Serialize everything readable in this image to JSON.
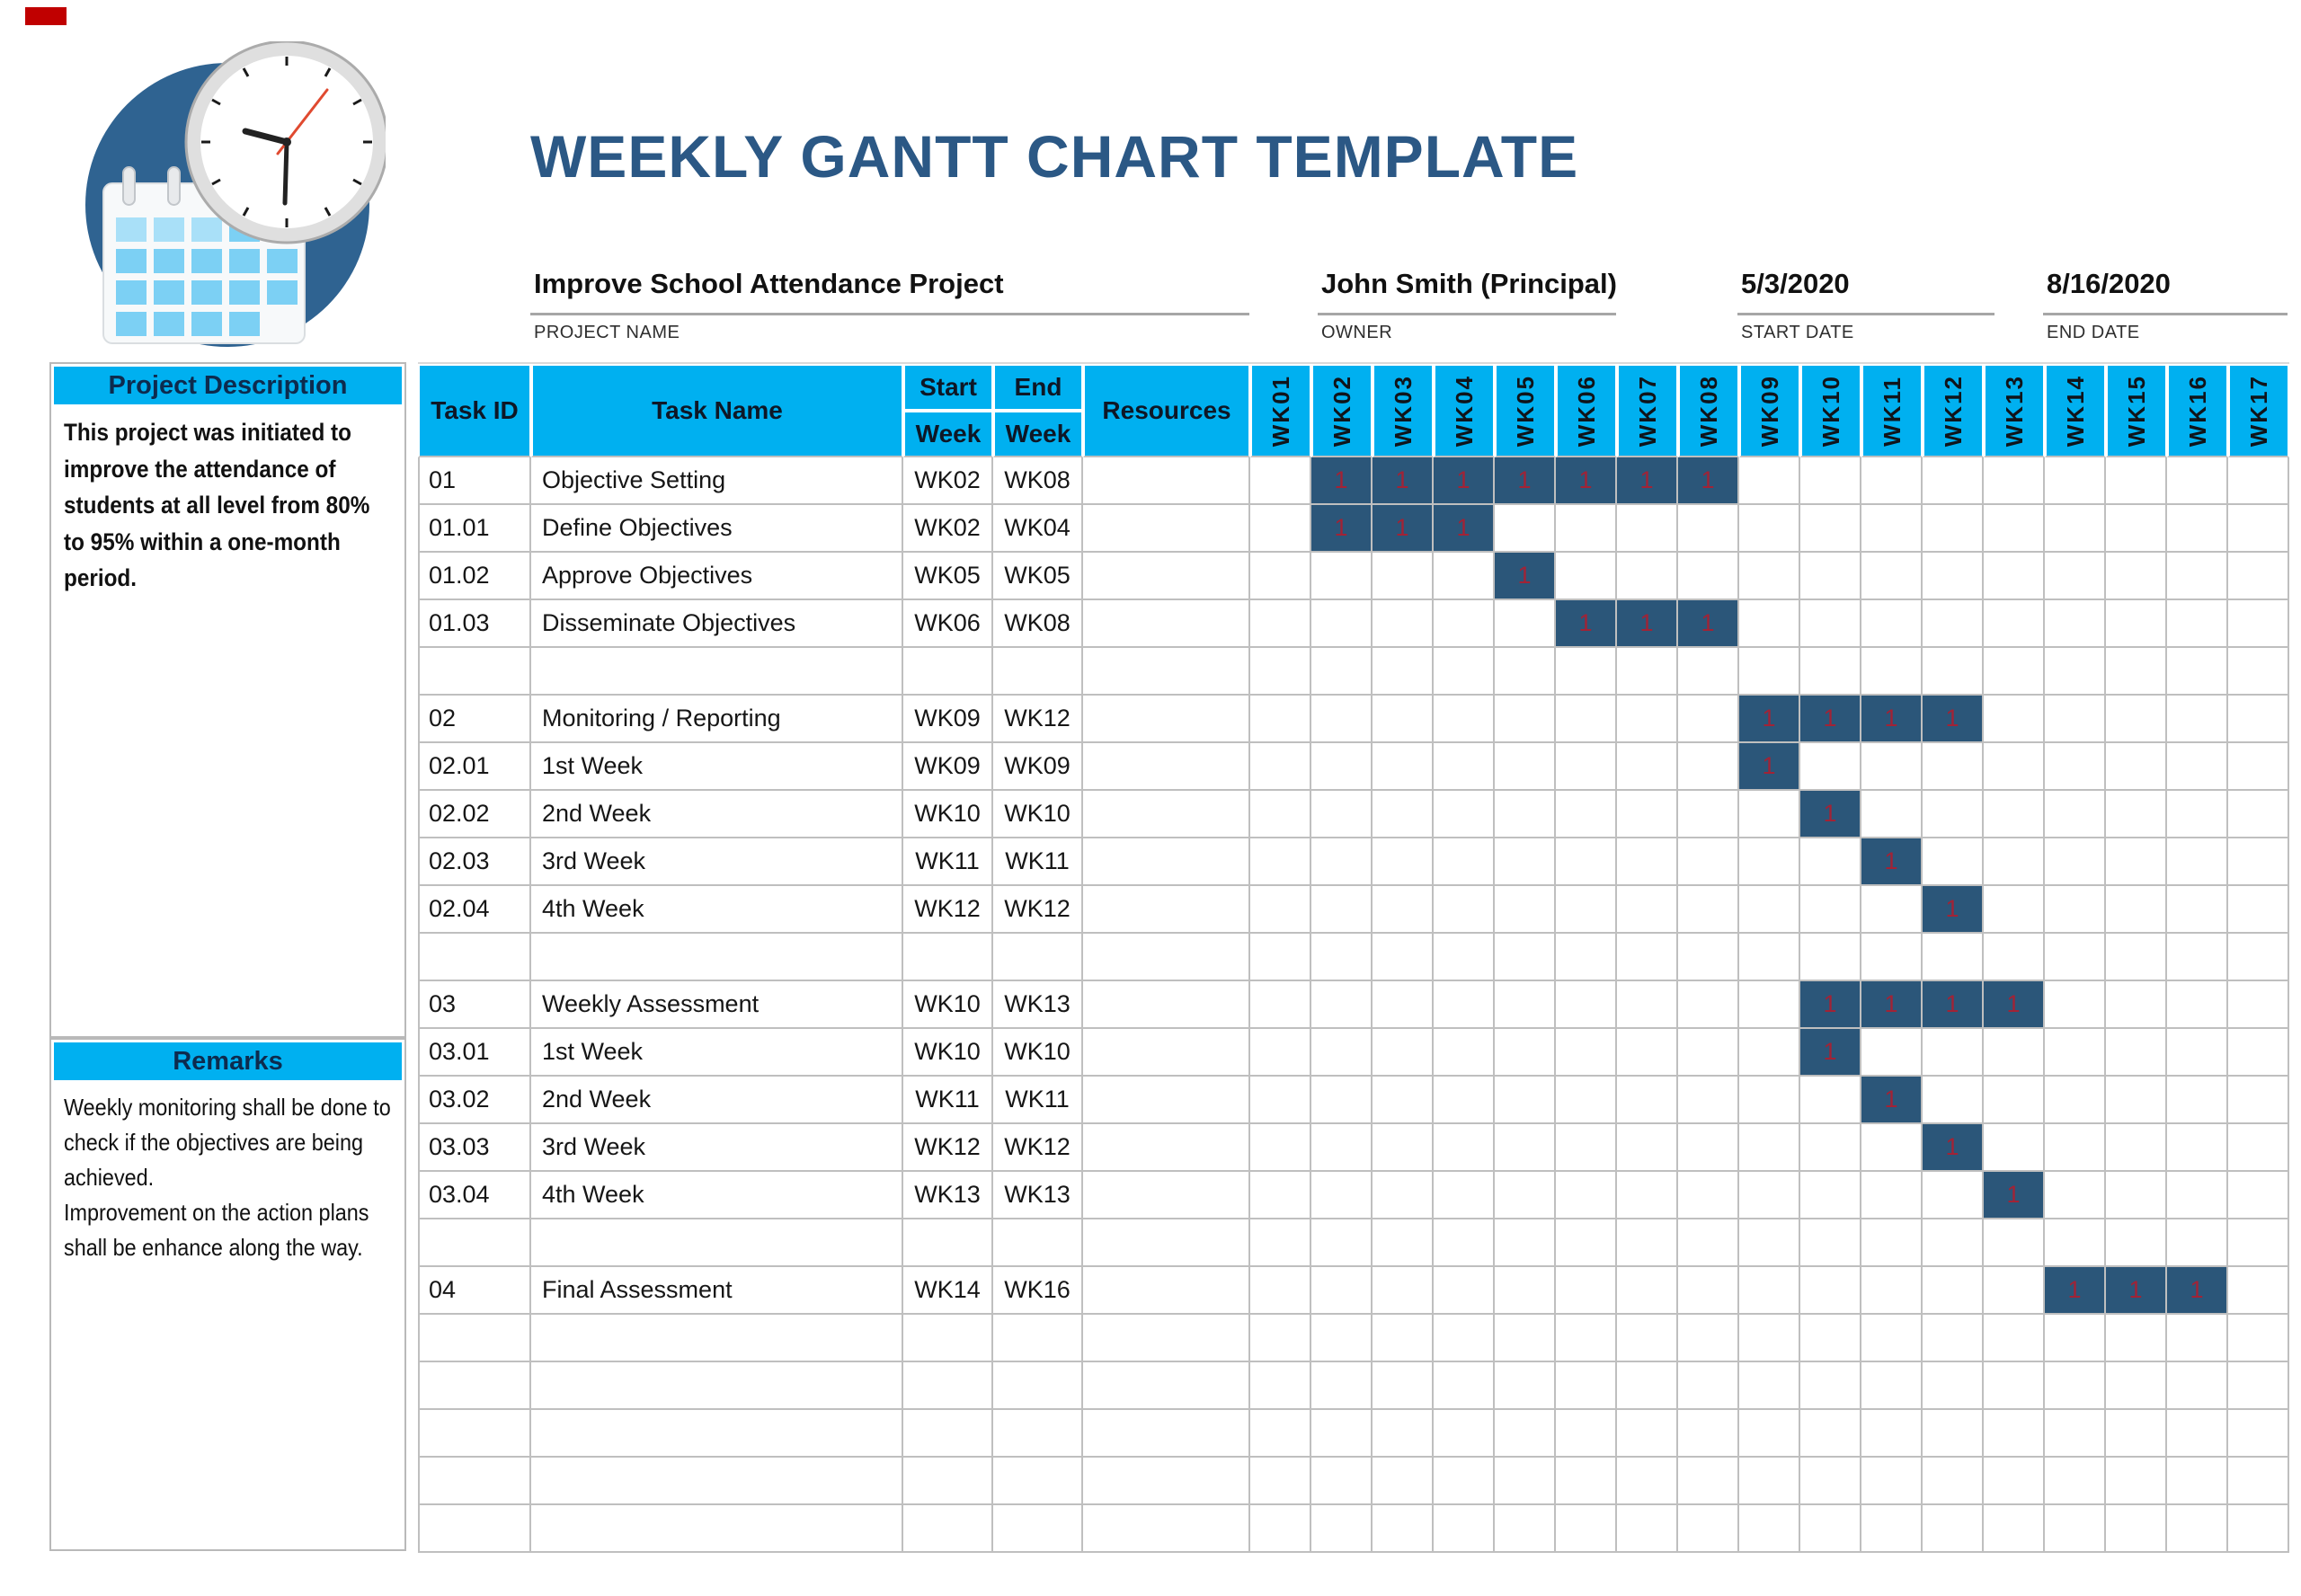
{
  "title": "WEEKLY GANTT CHART TEMPLATE",
  "colors": {
    "header_cyan": "#00B0F0",
    "bar_navy": "#2B5679",
    "bar_value_red": "#A12336",
    "title_navy": "#2B5885",
    "grid_gray": "#BFBFBF",
    "logo_circle_blue": "#2F6391",
    "marker_red": "#C00000"
  },
  "info": {
    "project_name": {
      "value": "Improve School Attendance Project",
      "label": "PROJECT NAME"
    },
    "owner": {
      "value": "John Smith (Principal)",
      "label": "OWNER"
    },
    "start_date": {
      "value": "5/3/2020",
      "label": "START DATE"
    },
    "end_date": {
      "value": "8/16/2020",
      "label": "END DATE"
    }
  },
  "sidebar": {
    "project_description": {
      "header": "Project Description",
      "body": "This project was initiated to improve the attendance of students at all level from 80% to 95% within a one-month period."
    },
    "remarks": {
      "header": "Remarks",
      "body_lines": [
        "Weekly monitoring shall be done to check if the objectives are being achieved.",
        "Improvement on the action plans shall be enhance along the way."
      ]
    }
  },
  "table_headers": {
    "task_id": "Task ID",
    "task_name": "Task Name",
    "start_line1": "Start",
    "start_line2": "Week",
    "end_line1": "End",
    "end_line2": "Week",
    "resources": "Resources"
  },
  "chart_data": {
    "type": "table",
    "subtype": "weekly-gantt",
    "title": "WEEKLY GANTT CHART TEMPLATE",
    "week_columns": [
      "WK01",
      "WK02",
      "WK03",
      "WK04",
      "WK05",
      "WK06",
      "WK07",
      "WK08",
      "WK09",
      "WK10",
      "WK11",
      "WK12",
      "WK13",
      "WK14",
      "WK15",
      "WK16",
      "WK17"
    ],
    "bar_cell_value": "1",
    "rows": [
      {
        "task_id": "01",
        "task_name": "Objective Setting",
        "start_week": "WK02",
        "end_week": "WK08",
        "resources": "",
        "bar": [
          2,
          8
        ]
      },
      {
        "task_id": "01.01",
        "task_name": "Define Objectives",
        "start_week": "WK02",
        "end_week": "WK04",
        "resources": "",
        "bar": [
          2,
          4
        ]
      },
      {
        "task_id": "01.02",
        "task_name": "Approve Objectives",
        "start_week": "WK05",
        "end_week": "WK05",
        "resources": "",
        "bar": [
          5,
          5
        ]
      },
      {
        "task_id": "01.03",
        "task_name": "Disseminate Objectives",
        "start_week": "WK06",
        "end_week": "WK08",
        "resources": "",
        "bar": [
          6,
          8
        ]
      },
      {
        "task_id": "",
        "task_name": "",
        "start_week": "",
        "end_week": "",
        "resources": "",
        "bar": null
      },
      {
        "task_id": "02",
        "task_name": "Monitoring / Reporting",
        "start_week": "WK09",
        "end_week": "WK12",
        "resources": "",
        "bar": [
          9,
          12
        ]
      },
      {
        "task_id": "02.01",
        "task_name": "1st Week",
        "start_week": "WK09",
        "end_week": "WK09",
        "resources": "",
        "bar": [
          9,
          9
        ]
      },
      {
        "task_id": "02.02",
        "task_name": "2nd Week",
        "start_week": "WK10",
        "end_week": "WK10",
        "resources": "",
        "bar": [
          10,
          10
        ]
      },
      {
        "task_id": "02.03",
        "task_name": "3rd Week",
        "start_week": "WK11",
        "end_week": "WK11",
        "resources": "",
        "bar": [
          11,
          11
        ]
      },
      {
        "task_id": "02.04",
        "task_name": "4th Week",
        "start_week": "WK12",
        "end_week": "WK12",
        "resources": "",
        "bar": [
          12,
          12
        ]
      },
      {
        "task_id": "",
        "task_name": "",
        "start_week": "",
        "end_week": "",
        "resources": "",
        "bar": null
      },
      {
        "task_id": "03",
        "task_name": "Weekly Assessment",
        "start_week": "WK10",
        "end_week": "WK13",
        "resources": "",
        "bar": [
          10,
          13
        ]
      },
      {
        "task_id": "03.01",
        "task_name": "1st Week",
        "start_week": "WK10",
        "end_week": "WK10",
        "resources": "",
        "bar": [
          10,
          10
        ]
      },
      {
        "task_id": "03.02",
        "task_name": "2nd Week",
        "start_week": "WK11",
        "end_week": "WK11",
        "resources": "",
        "bar": [
          11,
          11
        ]
      },
      {
        "task_id": "03.03",
        "task_name": "3rd Week",
        "start_week": "WK12",
        "end_week": "WK12",
        "resources": "",
        "bar": [
          12,
          12
        ]
      },
      {
        "task_id": "03.04",
        "task_name": "4th Week",
        "start_week": "WK13",
        "end_week": "WK13",
        "resources": "",
        "bar": [
          13,
          13
        ]
      },
      {
        "task_id": "",
        "task_name": "",
        "start_week": "",
        "end_week": "",
        "resources": "",
        "bar": null
      },
      {
        "task_id": "04",
        "task_name": "Final Assessment",
        "start_week": "WK14",
        "end_week": "WK16",
        "resources": "",
        "bar": [
          14,
          16
        ]
      },
      {
        "task_id": "",
        "task_name": "",
        "start_week": "",
        "end_week": "",
        "resources": "",
        "bar": null
      },
      {
        "task_id": "",
        "task_name": "",
        "start_week": "",
        "end_week": "",
        "resources": "",
        "bar": null
      },
      {
        "task_id": "",
        "task_name": "",
        "start_week": "",
        "end_week": "",
        "resources": "",
        "bar": null
      },
      {
        "task_id": "",
        "task_name": "",
        "start_week": "",
        "end_week": "",
        "resources": "",
        "bar": null
      },
      {
        "task_id": "",
        "task_name": "",
        "start_week": "",
        "end_week": "",
        "resources": "",
        "bar": null
      }
    ]
  }
}
